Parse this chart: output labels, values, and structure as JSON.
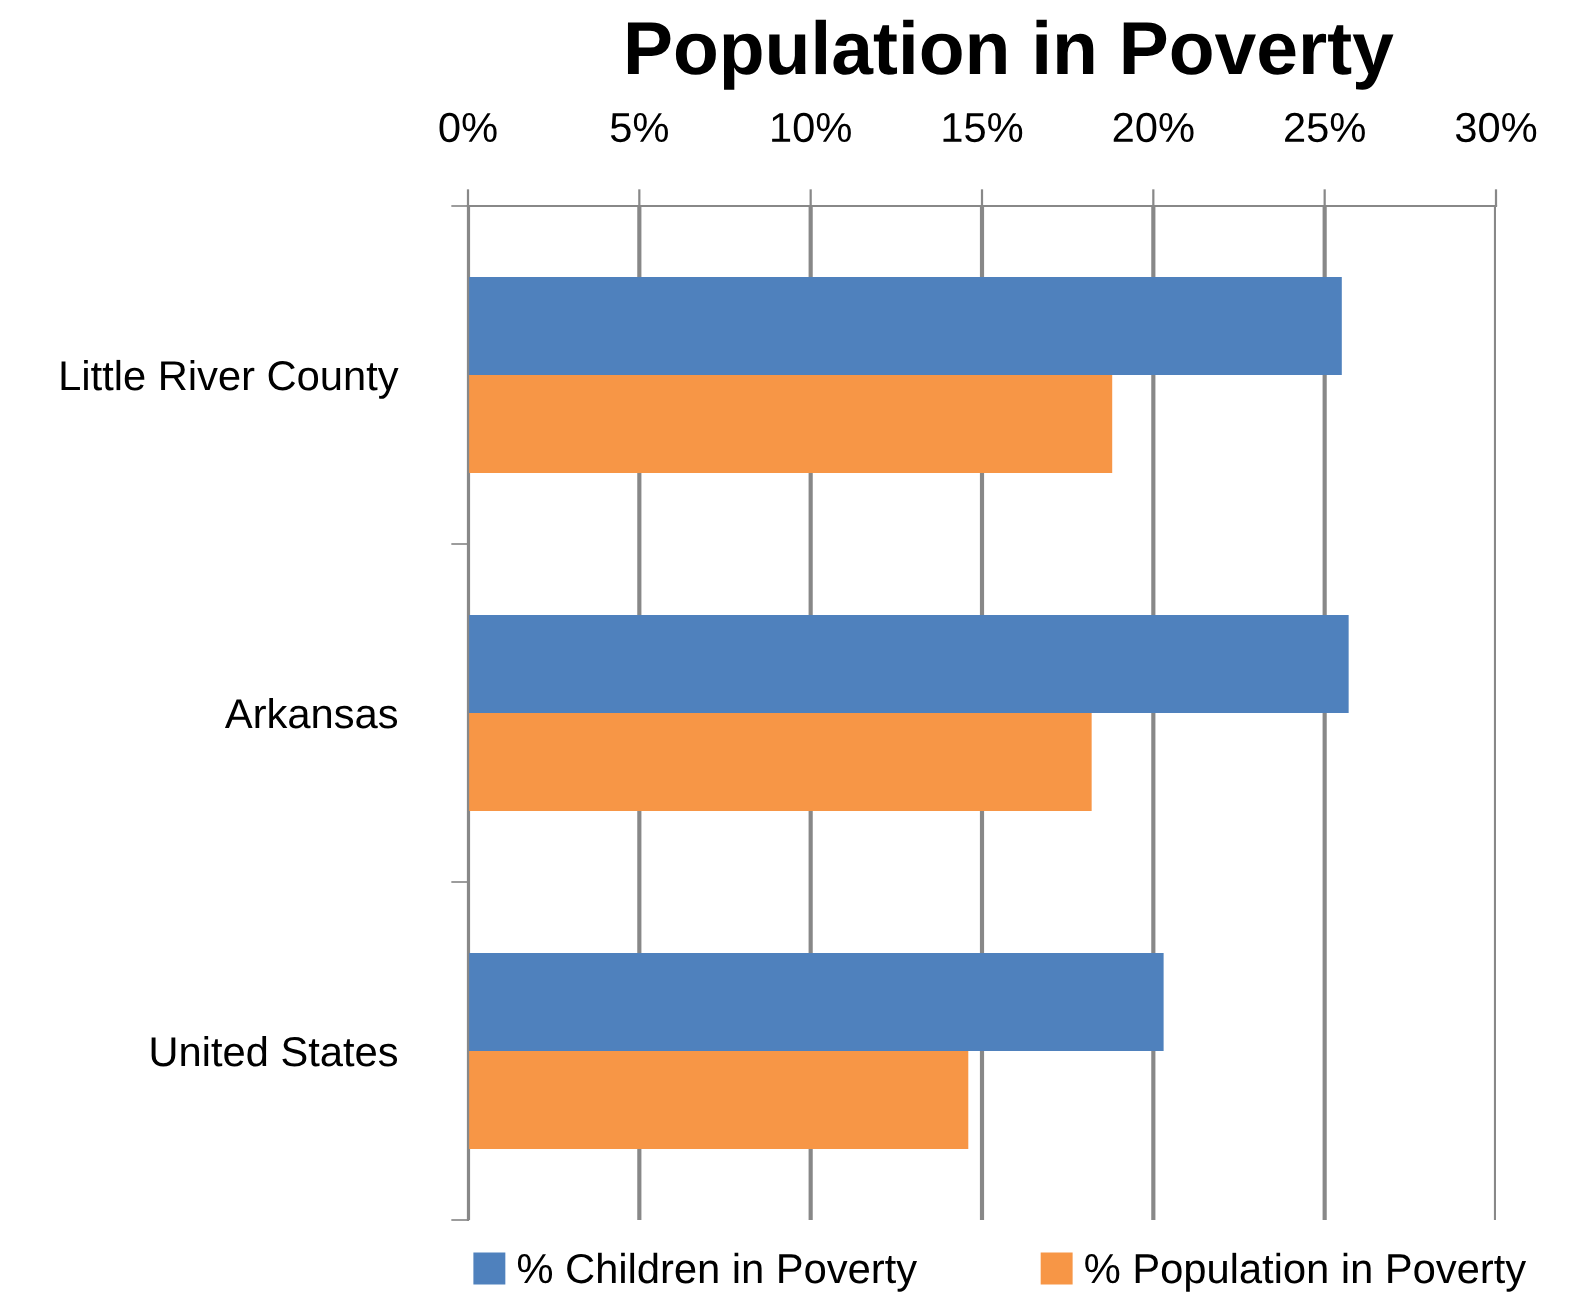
{
  "chart_data": {
    "type": "bar",
    "orientation": "horizontal",
    "title": "Population in Poverty",
    "categories": [
      "Little River County",
      "Arkansas",
      "United States"
    ],
    "series": [
      {
        "name": "% Children in Poverty",
        "color": "#4f81bd",
        "values": [
          25.5,
          25.7,
          20.3
        ]
      },
      {
        "name": "% Population in Poverty",
        "color": "#f79646",
        "values": [
          18.8,
          18.2,
          14.6
        ]
      }
    ],
    "xlim": [
      0,
      30
    ],
    "xticks": [
      {
        "value": 0,
        "label": "0%"
      },
      {
        "value": 5,
        "label": "5%"
      },
      {
        "value": 10,
        "label": "10%"
      },
      {
        "value": 15,
        "label": "15%"
      },
      {
        "value": 20,
        "label": "20%"
      },
      {
        "value": 25,
        "label": "25%"
      },
      {
        "value": 30,
        "label": "30%"
      }
    ],
    "grid": "x",
    "legend": "bottom"
  }
}
